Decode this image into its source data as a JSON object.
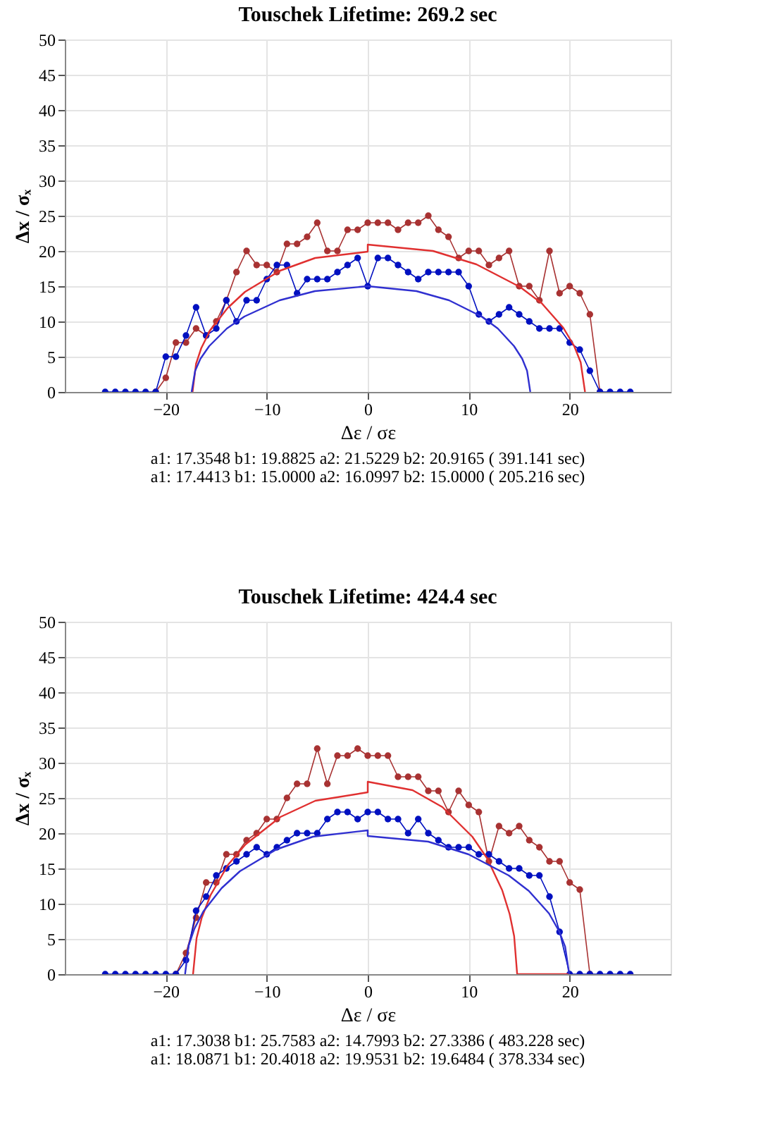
{
  "chart_data": [
    {
      "type": "line",
      "title": "Touschek Lifetime: 269.2 sec",
      "xlabel": "Δε / σε",
      "ylabel": "Δx / σₓ",
      "xlim": [
        -30,
        30
      ],
      "xticks": [
        -20,
        -10,
        0,
        10,
        20
      ],
      "ylim": [
        0,
        50
      ],
      "yticks": [
        0,
        5,
        10,
        15,
        20,
        25,
        30,
        35,
        40,
        45,
        50
      ],
      "grid": true,
      "series": [
        {
          "color": "#a83232",
          "marker": "circle",
          "x": [
            -21,
            -20,
            -19,
            -18,
            -17,
            -16,
            -15,
            -14,
            -13,
            -12,
            -11,
            -10,
            -9,
            -8,
            -7,
            -6,
            -5,
            -4,
            -3,
            -2,
            -1,
            0,
            1,
            2,
            3,
            4,
            5,
            6,
            7,
            8,
            9,
            10,
            11,
            12,
            13,
            14,
            15,
            16,
            17,
            18,
            19,
            20,
            21,
            22,
            23
          ],
          "values": [
            0,
            2,
            7,
            7,
            9,
            8,
            10,
            13,
            17,
            20,
            18,
            18,
            17,
            21,
            21,
            22,
            24,
            20,
            20,
            23,
            23,
            24,
            24,
            24,
            23,
            24,
            24,
            25,
            23,
            22,
            19,
            20,
            20,
            18,
            19,
            20,
            15,
            15,
            13,
            20,
            14,
            15,
            14,
            11,
            0
          ]
        },
        {
          "color": "#0010c0",
          "marker": "circle",
          "x": [
            -26,
            -25,
            -24,
            -23,
            -22,
            -21,
            -20,
            -19,
            -18,
            -17,
            -16,
            -15,
            -14,
            -13,
            -12,
            -11,
            -10,
            -9,
            -8,
            -7,
            -6,
            -5,
            -4,
            -3,
            -2,
            -1,
            0,
            1,
            2,
            3,
            4,
            5,
            6,
            7,
            8,
            9,
            10,
            11,
            12,
            13,
            14,
            15,
            16,
            17,
            18,
            19,
            20,
            21,
            22,
            23,
            24,
            25,
            26
          ],
          "values": [
            0,
            0,
            0,
            0,
            0,
            0,
            5,
            5,
            8,
            12,
            8,
            9,
            13,
            10,
            13,
            13,
            16,
            18,
            18,
            14,
            16,
            16,
            16,
            17,
            18,
            19,
            15,
            19,
            19,
            18,
            17,
            16,
            17,
            17,
            17,
            17,
            15,
            11,
            10,
            11,
            12,
            11,
            10,
            9,
            9,
            9,
            7,
            6,
            3,
            0,
            0,
            0,
            0
          ]
        },
        {
          "color": "#e03030",
          "marker": "none",
          "x": [
            -17.35,
            -17.0,
            -16.49,
            -15.62,
            -13.88,
            -12.15,
            -8.68,
            -5.21,
            0,
            0,
            6.46,
            10.76,
            15.07,
            17.22,
            19.37,
            20.45,
            21.09,
            21.52
          ],
          "values": [
            0,
            4.0,
            6.2,
            8.7,
            11.9,
            14.2,
            17.2,
            19.0,
            19.9,
            20.9,
            20.0,
            18.1,
            14.9,
            12.6,
            9.1,
            6.5,
            4.2,
            0
          ]
        },
        {
          "color": "#3030d0",
          "marker": "none",
          "x": [
            -17.44,
            -17.09,
            -16.57,
            -15.7,
            -13.95,
            -12.21,
            -8.72,
            -5.23,
            0,
            4.83,
            8.05,
            11.27,
            12.88,
            14.49,
            15.3,
            15.78,
            16.1
          ],
          "values": [
            0,
            3.0,
            4.7,
            6.5,
            9.0,
            10.7,
            13.0,
            14.3,
            15,
            14.3,
            13.0,
            10.7,
            9.0,
            6.5,
            4.7,
            3.0,
            0
          ]
        }
      ],
      "annotations": [
        "a1:  17.3548    b1:  19.8825    a2:  21.5229    b2:  20.9165    ( 391.141 sec)",
        "a1:  17.4413    b1:  15.0000    a2:  16.0997    b2:  15.0000    ( 205.216 sec)"
      ]
    },
    {
      "type": "line",
      "title": "Touschek Lifetime: 424.4 sec",
      "xlabel": "Δε / σε",
      "ylabel": "Δx / σₓ",
      "xlim": [
        -30,
        30
      ],
      "xticks": [
        -20,
        -10,
        0,
        10,
        20
      ],
      "ylim": [
        0,
        50
      ],
      "yticks": [
        0,
        5,
        10,
        15,
        20,
        25,
        30,
        35,
        40,
        45,
        50
      ],
      "grid": true,
      "series": [
        {
          "color": "#a83232",
          "marker": "circle",
          "x": [
            -19,
            -18,
            -17,
            -16,
            -15,
            -14,
            -13,
            -12,
            -11,
            -10,
            -9,
            -8,
            -7,
            -6,
            -5,
            -4,
            -3,
            -2,
            -1,
            0,
            1,
            2,
            3,
            4,
            5,
            6,
            7,
            8,
            9,
            10,
            11,
            12,
            13,
            14,
            15,
            16,
            17,
            18,
            19,
            20,
            21,
            22
          ],
          "values": [
            0,
            3,
            8,
            13,
            13,
            17,
            17,
            19,
            20,
            22,
            22,
            25,
            27,
            27,
            32,
            27,
            31,
            31,
            32,
            31,
            31,
            31,
            28,
            28,
            28,
            26,
            26,
            23,
            26,
            24,
            23,
            16,
            21,
            20,
            21,
            19,
            18,
            16,
            16,
            13,
            12,
            0
          ]
        },
        {
          "color": "#0010c0",
          "marker": "circle",
          "x": [
            -26,
            -25,
            -24,
            -23,
            -22,
            -21,
            -20,
            -19,
            -18,
            -17,
            -16,
            -15,
            -14,
            -13,
            -12,
            -11,
            -10,
            -9,
            -8,
            -7,
            -6,
            -5,
            -4,
            -3,
            -2,
            -1,
            0,
            1,
            2,
            3,
            4,
            5,
            6,
            7,
            8,
            9,
            10,
            11,
            12,
            13,
            14,
            15,
            16,
            17,
            18,
            19,
            20,
            21,
            22,
            23,
            24,
            25,
            26
          ],
          "values": [
            0,
            0,
            0,
            0,
            0,
            0,
            0,
            0,
            2,
            9,
            11,
            14,
            15,
            16,
            17,
            18,
            17,
            18,
            19,
            20,
            20,
            20,
            22,
            23,
            23,
            22,
            23,
            23,
            22,
            22,
            20,
            22,
            20,
            19,
            18,
            18,
            18,
            17,
            17,
            16,
            15,
            15,
            14,
            14,
            11,
            6,
            0,
            0,
            0,
            0,
            0,
            0,
            0
          ]
        },
        {
          "color": "#e03030",
          "marker": "none",
          "x": [
            -17.3,
            -16.95,
            -16.44,
            -15.57,
            -13.84,
            -12.11,
            -8.65,
            -5.19,
            0,
            0,
            4.44,
            7.4,
            10.36,
            11.84,
            13.32,
            14.06,
            14.5,
            14.8,
            20
          ],
          "values": [
            0,
            5.1,
            8.0,
            11.2,
            15.5,
            18.4,
            22.3,
            24.6,
            25.8,
            27.3,
            26.1,
            23.7,
            19.5,
            16.4,
            11.9,
            8.5,
            5.4,
            0,
            0
          ]
        },
        {
          "color": "#3030d0",
          "marker": "none",
          "x": [
            -18.09,
            -17.73,
            -17.18,
            -16.28,
            -14.47,
            -12.66,
            -9.04,
            -5.43,
            0,
            0,
            5.99,
            9.98,
            13.97,
            15.96,
            17.96,
            18.95,
            19.55,
            19.95
          ],
          "values": [
            0,
            4.1,
            6.4,
            8.9,
            12.2,
            14.6,
            17.7,
            19.5,
            20.4,
            19.6,
            18.8,
            17.0,
            14.0,
            11.8,
            8.6,
            6.1,
            3.9,
            0
          ]
        }
      ],
      "annotations": [
        "a1:  17.3038    b1:  25.7583    a2:  14.7993    b2:  27.3386    ( 483.228 sec)",
        "a1:  18.0871    b1:  20.4018    a2:  19.9531    b2:  19.6484    ( 378.334 sec)"
      ]
    }
  ]
}
